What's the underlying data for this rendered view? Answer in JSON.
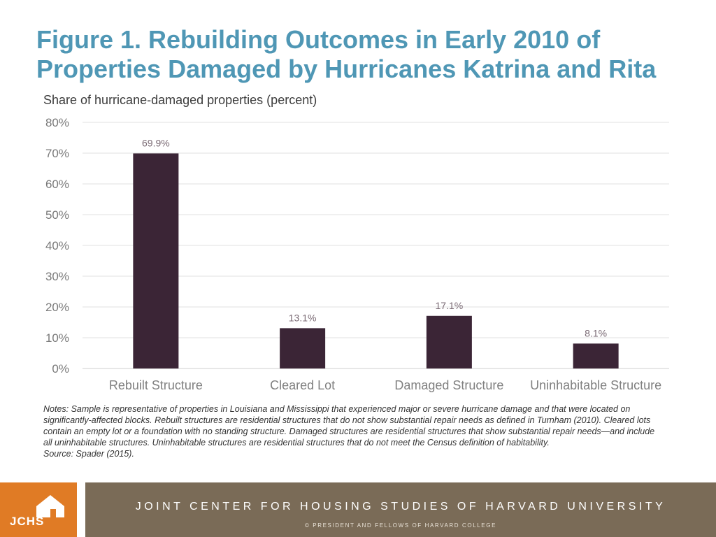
{
  "title": "Figure 1. Rebuilding Outcomes in Early 2010 of Properties Damaged by Hurricanes Katrina and Rita",
  "subtitle": "Share of hurricane-damaged properties (percent)",
  "chart_data": {
    "type": "bar",
    "categories": [
      "Rebuilt Structure",
      "Cleared Lot",
      "Damaged Structure",
      "Uninhabitable Structure"
    ],
    "values": [
      69.9,
      13.1,
      17.1,
      8.1
    ],
    "data_labels": [
      "69.9%",
      "13.1%",
      "17.1%",
      "8.1%"
    ],
    "ylim": [
      0,
      80
    ],
    "yticks": [
      0,
      10,
      20,
      30,
      40,
      50,
      60,
      70,
      80
    ],
    "ytick_labels": [
      "0%",
      "10%",
      "20%",
      "30%",
      "40%",
      "50%",
      "60%",
      "70%",
      "80%"
    ],
    "grid": true,
    "bar_color": "#3b2536"
  },
  "notes": {
    "text": "Notes: Sample is representative of properties in Louisiana and Mississippi that experienced major or severe hurricane damage and that were located on significantly-affected blocks. Rebuilt structures are residential structures that do not show substantial repair needs as defined in Turnham (2010). Cleared lots contain an empty lot or a foundation with no standing structure. Damaged structures are residential structures that show substantial repair needs—and include all uninhabitable structures. Uninhabitable structures are residential structures that do not meet the Census definition of habitability.",
    "source": "Source: Spader (2015)."
  },
  "footer": {
    "logo_text": "JCHS",
    "organization": "JOINT CENTER FOR HOUSING STUDIES OF HARVARD UNIVERSITY",
    "copyright": "© PRESIDENT AND FELLOWS OF HARVARD COLLEGE"
  },
  "colors": {
    "title": "#4f97b5",
    "logo_orange": "#e07b25",
    "footer_band": "#7a6b57"
  }
}
